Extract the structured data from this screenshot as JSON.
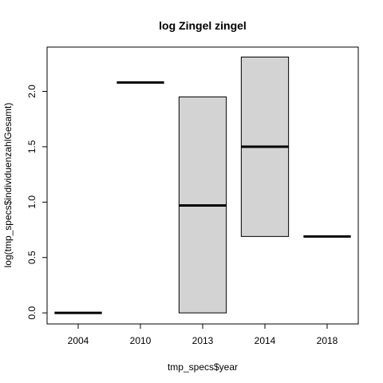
{
  "chart_data": {
    "type": "boxplot",
    "title": "log Zingel zingel",
    "xlabel": "tmp_specs$year",
    "ylabel": "log(tmp_specs$individuenzahlGesamt)",
    "categories": [
      "2004",
      "2010",
      "2013",
      "2014",
      "2018"
    ],
    "boxes": [
      {
        "category": "2004",
        "lower": 0.0,
        "median": 0.0,
        "upper": 0.0
      },
      {
        "category": "2010",
        "lower": 2.08,
        "median": 2.08,
        "upper": 2.08
      },
      {
        "category": "2013",
        "lower": 0.0,
        "median": 0.97,
        "upper": 1.95
      },
      {
        "category": "2014",
        "lower": 0.69,
        "median": 1.5,
        "upper": 2.31
      },
      {
        "category": "2018",
        "lower": 0.69,
        "median": 0.69,
        "upper": 0.69
      }
    ],
    "yticks": [
      "0.0",
      "0.5",
      "1.0",
      "1.5",
      "2.0"
    ],
    "ylim": [
      -0.1,
      2.4
    ],
    "box_fill": "#d3d3d3",
    "grid": false,
    "legend": false
  }
}
